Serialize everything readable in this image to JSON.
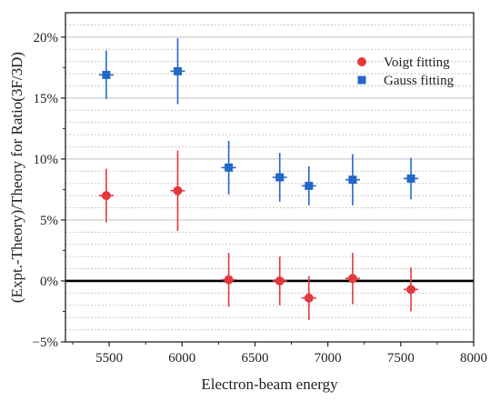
{
  "chart_data": {
    "type": "scatter",
    "title": "",
    "xlabel": "Electron-beam energy",
    "ylabel": "(Expt.-Theory)/Theory for Ratio(3F/3D)",
    "xlim": [
      5200,
      8000
    ],
    "ylim": [
      -5,
      22
    ],
    "x_ticks": [
      5500,
      6000,
      6500,
      7000,
      7500,
      8000
    ],
    "x_tick_labels": [
      "5500",
      "6000",
      "6500",
      "7000",
      "7500",
      "8000"
    ],
    "y_ticks": [
      -5,
      0,
      5,
      10,
      15,
      20
    ],
    "y_tick_labels": [
      "−5%",
      "0%",
      "5%",
      "10%",
      "15%",
      "20%"
    ],
    "grid": true,
    "reference_line": 0,
    "legend_position": "top-right",
    "series": [
      {
        "name": "Voigt fitting",
        "marker": "circle",
        "color": "#e2393e",
        "points": [
          {
            "x": 5480,
            "y": 7.0,
            "xerr": 50,
            "yerr": 2.2
          },
          {
            "x": 5970,
            "y": 7.4,
            "xerr": 50,
            "yerr": 3.3
          },
          {
            "x": 6320,
            "y": 0.1,
            "xerr": 50,
            "yerr": 2.2
          },
          {
            "x": 6670,
            "y": 0.0,
            "xerr": 50,
            "yerr": 2.0
          },
          {
            "x": 6870,
            "y": -1.4,
            "xerr": 50,
            "yerr": 1.8
          },
          {
            "x": 7170,
            "y": 0.2,
            "xerr": 50,
            "yerr": 2.1
          },
          {
            "x": 7570,
            "y": -0.7,
            "xerr": 50,
            "yerr": 1.8
          }
        ]
      },
      {
        "name": "Gauss fitting",
        "marker": "square",
        "color": "#2468c6",
        "points": [
          {
            "x": 5480,
            "y": 16.9,
            "xerr": 50,
            "yerr": 2.0
          },
          {
            "x": 5970,
            "y": 17.2,
            "xerr": 50,
            "yerr": 2.7
          },
          {
            "x": 6320,
            "y": 9.3,
            "xerr": 50,
            "yerr": 2.2
          },
          {
            "x": 6670,
            "y": 8.5,
            "xerr": 50,
            "yerr": 2.0
          },
          {
            "x": 6870,
            "y": 7.8,
            "xerr": 50,
            "yerr": 1.6
          },
          {
            "x": 7170,
            "y": 8.3,
            "xerr": 50,
            "yerr": 2.1
          },
          {
            "x": 7570,
            "y": 8.4,
            "xerr": 50,
            "yerr": 1.7
          }
        ]
      }
    ]
  }
}
